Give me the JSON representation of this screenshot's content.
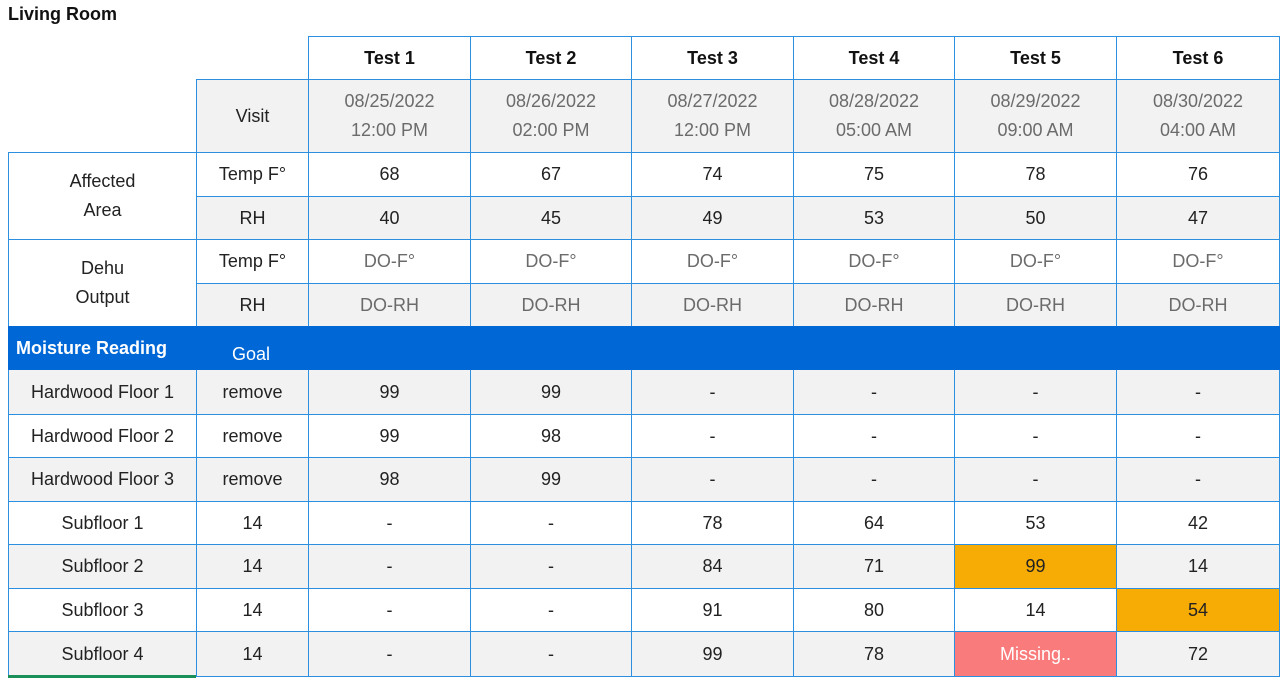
{
  "page_title": "Living Room",
  "tests": [
    "Test 1",
    "Test 2",
    "Test 3",
    "Test 4",
    "Test 5",
    "Test 6"
  ],
  "visit": {
    "label": "Visit",
    "dates": [
      {
        "date": "08/25/2022",
        "time": "12:00 PM"
      },
      {
        "date": "08/26/2022",
        "time": "02:00 PM"
      },
      {
        "date": "08/27/2022",
        "time": "12:00 PM"
      },
      {
        "date": "08/28/2022",
        "time": "05:00 AM"
      },
      {
        "date": "08/29/2022",
        "time": "09:00 AM"
      },
      {
        "date": "08/30/2022",
        "time": "04:00 AM"
      }
    ]
  },
  "affected_area": {
    "label_line1": "Affected",
    "label_line2": "Area",
    "temp": {
      "label": "Temp F°",
      "values": [
        "68",
        "67",
        "74",
        "75",
        "78",
        "76"
      ]
    },
    "rh": {
      "label": "RH",
      "values": [
        "40",
        "45",
        "49",
        "53",
        "50",
        "47"
      ]
    }
  },
  "dehu_output": {
    "label_line1": "Dehu",
    "label_line2": "Output",
    "temp": {
      "label": "Temp F°",
      "values": [
        "DO-F°",
        "DO-F°",
        "DO-F°",
        "DO-F°",
        "DO-F°",
        "DO-F°"
      ]
    },
    "rh": {
      "label": "RH",
      "values": [
        "DO-RH",
        "DO-RH",
        "DO-RH",
        "DO-RH",
        "DO-RH",
        "DO-RH"
      ]
    }
  },
  "moisture": {
    "title": "Moisture Reading",
    "goal_label": "Goal",
    "rows": [
      {
        "name": "Hardwood Floor 1",
        "goal": "remove",
        "values": [
          "99",
          "99",
          "-",
          "-",
          "-",
          "-"
        ]
      },
      {
        "name": "Hardwood Floor 2",
        "goal": "remove",
        "values": [
          "99",
          "98",
          "-",
          "-",
          "-",
          "-"
        ]
      },
      {
        "name": "Hardwood Floor 3",
        "goal": "remove",
        "values": [
          "98",
          "99",
          "-",
          "-",
          "-",
          "-"
        ]
      },
      {
        "name": "Subfloor 1",
        "goal": "14",
        "values": [
          "-",
          "-",
          "78",
          "64",
          "53",
          "42"
        ]
      },
      {
        "name": "Subfloor 2",
        "goal": "14",
        "values": [
          "-",
          "-",
          "84",
          "71",
          "99",
          "14"
        ]
      },
      {
        "name": "Subfloor 3",
        "goal": "14",
        "values": [
          "-",
          "-",
          "91",
          "80",
          "14",
          "54"
        ]
      },
      {
        "name": "Subfloor 4",
        "goal": "14",
        "values": [
          "-",
          "-",
          "99",
          "78",
          "Missing..",
          "72"
        ]
      }
    ]
  },
  "highlight_colors": {
    "warning": "#f7ab05",
    "missing": "#f97b7b",
    "band": "#0067d6",
    "grid": "#2d8fe0"
  }
}
